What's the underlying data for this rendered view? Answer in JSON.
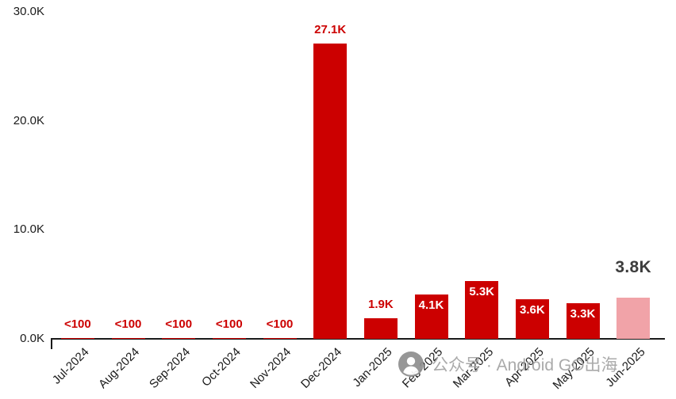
{
  "chart_data": {
    "type": "bar",
    "title": "",
    "xlabel": "",
    "ylabel": "",
    "categories": [
      "Jul-2024",
      "Aug-2024",
      "Sep-2024",
      "Oct-2024",
      "Nov-2024",
      "Dec-2024",
      "Jan-2025",
      "Feb-2025",
      "Mar-2025",
      "Apr-2025",
      "May-2025",
      "Jun-2025"
    ],
    "values_k": [
      0.05,
      0.05,
      0.05,
      0.05,
      0.05,
      27.1,
      1.9,
      4.1,
      5.3,
      3.6,
      3.3,
      3.8
    ],
    "labels": [
      "<100",
      "<100",
      "<100",
      "<100",
      "<100",
      "27.1K",
      "1.9K",
      "4.1K",
      "5.3K",
      "3.6K",
      "3.3K",
      "3.8K"
    ],
    "label_placement": [
      "above",
      "above",
      "above",
      "above",
      "above",
      "above",
      "above",
      "inside",
      "inside",
      "inside",
      "inside",
      "above"
    ],
    "highlight_index": 11,
    "ylim_k": [
      0,
      30
    ],
    "yticks": [
      {
        "label": "0.0K",
        "value_k": 0
      },
      {
        "label": "10.0K",
        "value_k": 10
      },
      {
        "label": "20.0K",
        "value_k": 20
      },
      {
        "label": "30.0K",
        "value_k": 30
      }
    ],
    "grid": false,
    "legend": false,
    "colors": {
      "bar": "#cc0000",
      "highlight_bar": "#f1a3a8",
      "above_label": "#cc0000",
      "inside_label": "#ffffff",
      "highlight_label": "#3d3d3d",
      "axis": "#1a1a1a",
      "tick_label": "#1a1a1a"
    }
  },
  "watermark": {
    "text": "公众号 · Android GO出海"
  }
}
